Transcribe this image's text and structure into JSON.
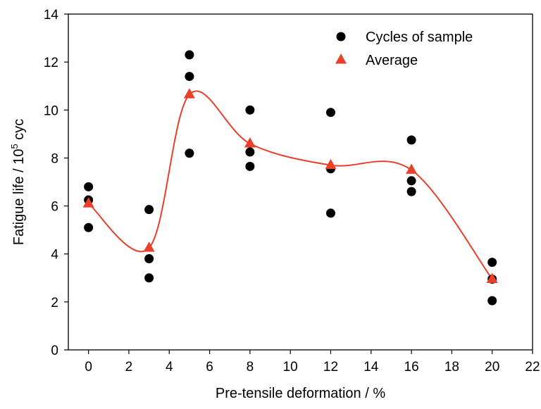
{
  "chart_data": {
    "type": "scatter",
    "xlabel": "Pre-tensile deformation / %",
    "ylabel_prefix": "Fatigue life / 10",
    "ylabel_sup": "5",
    "ylabel_suffix": " cyc",
    "xlim": [
      -1,
      22
    ],
    "ylim": [
      0,
      14
    ],
    "xticks": [
      0,
      2,
      4,
      6,
      8,
      10,
      12,
      14,
      16,
      18,
      20,
      22
    ],
    "yticks": [
      0,
      2,
      4,
      6,
      8,
      10,
      12,
      14
    ],
    "grid": false,
    "legend_position": "top-right",
    "series": [
      {
        "name": "Cycles of sample",
        "marker": "circle",
        "color": "#000000",
        "points": [
          [
            0,
            6.8
          ],
          [
            0,
            6.25
          ],
          [
            0,
            5.1
          ],
          [
            3,
            5.85
          ],
          [
            3,
            3.8
          ],
          [
            3,
            3.0
          ],
          [
            5,
            12.3
          ],
          [
            5,
            11.4
          ],
          [
            5,
            8.2
          ],
          [
            8,
            10.0
          ],
          [
            8,
            8.25
          ],
          [
            8,
            7.65
          ],
          [
            12,
            9.9
          ],
          [
            12,
            7.55
          ],
          [
            12,
            5.7
          ],
          [
            16,
            8.75
          ],
          [
            16,
            7.05
          ],
          [
            16,
            6.6
          ],
          [
            20,
            3.65
          ],
          [
            20,
            2.95
          ],
          [
            20,
            2.05
          ]
        ]
      },
      {
        "name": "Average",
        "marker": "triangle",
        "color": "#e8402a",
        "line": "smooth",
        "points": [
          [
            0,
            6.1
          ],
          [
            3,
            4.25
          ],
          [
            5,
            10.65
          ],
          [
            8,
            8.6
          ],
          [
            12,
            7.7
          ],
          [
            16,
            7.5
          ],
          [
            20,
            2.95
          ]
        ]
      }
    ]
  }
}
